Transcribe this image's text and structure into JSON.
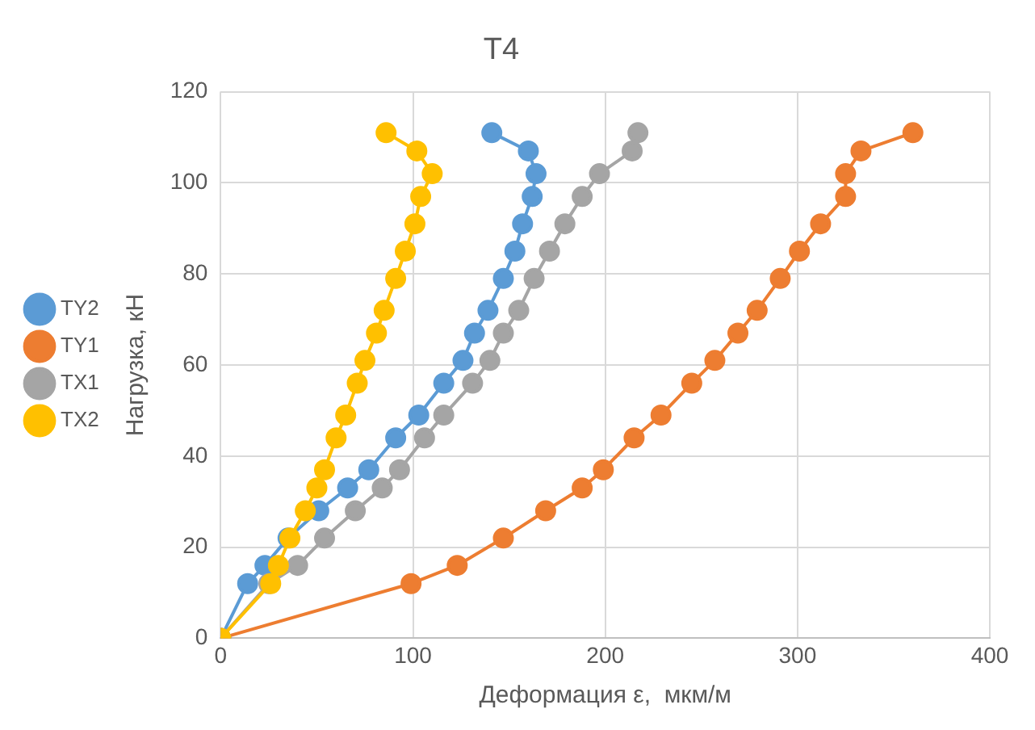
{
  "chart_data": {
    "type": "line",
    "title": "T4",
    "xlabel": "Деформация ε,  мкм/м",
    "ylabel": "Нагрузка, кН",
    "xlim": [
      0,
      400
    ],
    "xticks": [
      0,
      100,
      200,
      300,
      400
    ],
    "ylim": [
      0,
      120
    ],
    "yticks": [
      0,
      20,
      40,
      60,
      80,
      100,
      120
    ],
    "grid": true,
    "legend": "left",
    "marker": "circle",
    "series": [
      {
        "name": "TY2",
        "color": "#5b9bd5",
        "x": [
          0,
          14,
          23,
          35,
          51,
          66,
          77,
          91,
          103,
          116,
          126,
          132,
          139,
          147,
          153,
          157,
          162,
          164,
          160,
          141
        ],
        "values": [
          0,
          12,
          16,
          22,
          28,
          33,
          37,
          44,
          49,
          56,
          61,
          67,
          72,
          79,
          85,
          91,
          97,
          102,
          107,
          111
        ]
      },
      {
        "name": "TY1",
        "color": "#ed7d31",
        "x": [
          0,
          99,
          123,
          147,
          169,
          188,
          199,
          215,
          229,
          245,
          257,
          269,
          279,
          291,
          301,
          312,
          325,
          325,
          333,
          360
        ],
        "values": [
          0,
          12,
          16,
          22,
          28,
          33,
          37,
          44,
          49,
          56,
          61,
          67,
          72,
          79,
          85,
          91,
          97,
          102,
          107,
          111
        ]
      },
      {
        "name": "TX1",
        "color": "#a5a5a5",
        "x": [
          0,
          25,
          40,
          54,
          70,
          84,
          93,
          106,
          116,
          131,
          140,
          147,
          155,
          163,
          171,
          179,
          188,
          197,
          214,
          217
        ],
        "values": [
          0,
          12,
          16,
          22,
          28,
          33,
          37,
          44,
          49,
          56,
          61,
          67,
          72,
          79,
          85,
          91,
          97,
          102,
          107,
          111
        ]
      },
      {
        "name": "TX2",
        "color": "#ffc000",
        "x": [
          0,
          26,
          30,
          36,
          44,
          50,
          54,
          60,
          65,
          71,
          75,
          81,
          85,
          91,
          96,
          101,
          104,
          110,
          102,
          86
        ],
        "values": [
          0,
          12,
          16,
          22,
          28,
          33,
          37,
          44,
          49,
          56,
          61,
          67,
          72,
          79,
          85,
          91,
          97,
          102,
          107,
          111
        ]
      }
    ]
  }
}
